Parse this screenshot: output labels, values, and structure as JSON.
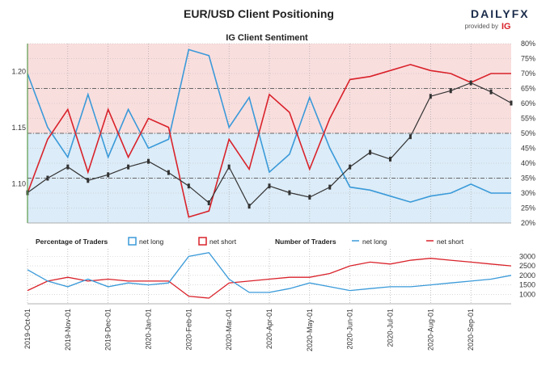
{
  "header": {
    "title": "EUR/USD Client Positioning",
    "brand": "DAILYFX",
    "brand_sub": "provided by",
    "brand_ig": "IG"
  },
  "colors": {
    "net_long": "#3a9ad9",
    "net_short": "#d9222a",
    "price": "#333333",
    "pink_zone": "#f9dede",
    "blue_zone": "#dcecf8"
  },
  "chart_data": [
    {
      "type": "line",
      "title": "IG Client Sentiment",
      "x": [
        "2019-Oct-01",
        "2019-Oct-15",
        "2019-Nov-01",
        "2019-Nov-15",
        "2019-Dec-01",
        "2019-Dec-15",
        "2020-Jan-01",
        "2020-Jan-15",
        "2020-Feb-01",
        "2020-Feb-15",
        "2020-Mar-01",
        "2020-Mar-15",
        "2020-Apr-01",
        "2020-Apr-15",
        "2020-May-01",
        "2020-May-15",
        "2020-Jun-01",
        "2020-Jun-15",
        "2020-Jul-01",
        "2020-Jul-15",
        "2020-Aug-01",
        "2020-Aug-15",
        "2020-Sep-01",
        "2020-Sep-15",
        "2020-Sep-30"
      ],
      "xticks": [
        "2019-Oct-01",
        "2019-Nov-01",
        "2019-Dec-01",
        "2020-Jan-01",
        "2020-Feb-01",
        "2020-Mar-01",
        "2020-Apr-01",
        "2020-May-01",
        "2020-Jun-01",
        "2020-Jul-01",
        "2020-Aug-01",
        "2020-Sep-01"
      ],
      "series": [
        {
          "role": "price",
          "axis": "left",
          "values": [
            1.092,
            1.105,
            1.115,
            1.103,
            1.108,
            1.115,
            1.12,
            1.11,
            1.098,
            1.083,
            1.115,
            1.08,
            1.098,
            1.092,
            1.088,
            1.097,
            1.115,
            1.128,
            1.122,
            1.142,
            1.178,
            1.183,
            1.19,
            1.182,
            1.172
          ]
        },
        {
          "role": "percent_long",
          "axis": "right",
          "values": [
            70,
            52,
            42,
            63,
            42,
            58,
            45,
            48,
            78,
            76,
            52,
            62,
            37,
            43,
            62,
            45,
            32,
            31,
            29,
            27,
            29,
            30,
            33,
            30,
            30
          ]
        },
        {
          "role": "percent_short",
          "axis": "right",
          "values": [
            30,
            48,
            58,
            37,
            58,
            42,
            55,
            52,
            22,
            24,
            48,
            38,
            63,
            57,
            38,
            55,
            68,
            69,
            71,
            73,
            71,
            70,
            67,
            70,
            70
          ]
        }
      ],
      "yticks_left": [
        "1.10",
        "1.15",
        "1.20"
      ],
      "ylim_left": [
        1.065,
        1.225
      ],
      "yticks_right": [
        "20%",
        "25%",
        "30%",
        "35%",
        "40%",
        "45%",
        "50%",
        "55%",
        "60%",
        "65%",
        "70%",
        "75%",
        "80%"
      ],
      "ylim_right": [
        20,
        80
      ],
      "grid": true
    },
    {
      "type": "line",
      "x": [
        "2019-Oct-01",
        "2019-Oct-15",
        "2019-Nov-01",
        "2019-Nov-15",
        "2019-Dec-01",
        "2019-Dec-15",
        "2020-Jan-01",
        "2020-Jan-15",
        "2020-Feb-01",
        "2020-Feb-15",
        "2020-Mar-01",
        "2020-Mar-15",
        "2020-Apr-01",
        "2020-Apr-15",
        "2020-May-01",
        "2020-May-15",
        "2020-Jun-01",
        "2020-Jun-15",
        "2020-Jul-01",
        "2020-Jul-15",
        "2020-Aug-01",
        "2020-Aug-15",
        "2020-Sep-01",
        "2020-Sep-15",
        "2020-Sep-30"
      ],
      "series": [
        {
          "name": "net long",
          "values": [
            2300,
            1700,
            1400,
            1800,
            1400,
            1600,
            1500,
            1600,
            3000,
            3200,
            1800,
            1100,
            1100,
            1300,
            1600,
            1400,
            1200,
            1300,
            1400,
            1400,
            1500,
            1600,
            1700,
            1800,
            2000
          ]
        },
        {
          "name": "net short",
          "values": [
            1200,
            1700,
            1900,
            1700,
            1800,
            1700,
            1700,
            1700,
            900,
            800,
            1600,
            1700,
            1800,
            1900,
            1900,
            2100,
            2500,
            2700,
            2600,
            2800,
            2900,
            2800,
            2700,
            2600,
            2500
          ]
        }
      ],
      "yticks": [
        "1000",
        "1500",
        "2000",
        "2500",
        "3000"
      ],
      "ylim": [
        500,
        3400
      ],
      "grid": true
    }
  ],
  "legend": {
    "pct_label": "Percentage of Traders",
    "pct_long": "net long",
    "pct_short": "net short",
    "num_label": "Number of Traders",
    "num_long": "net long",
    "num_short": "net short"
  }
}
